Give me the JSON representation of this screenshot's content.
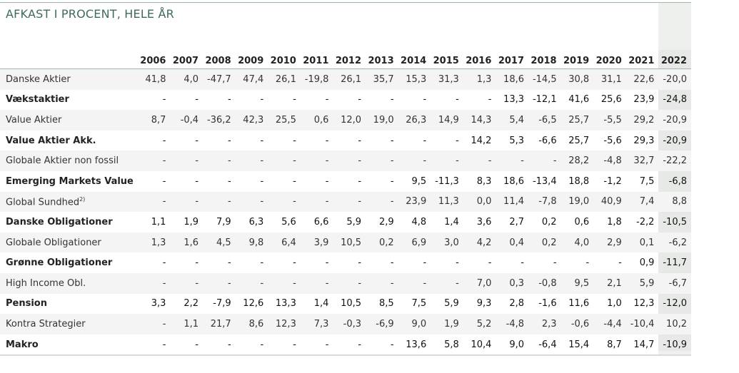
{
  "title": "AFKAST I PROCENT, HELE ÅR",
  "years": [
    "2006",
    "2007",
    "2008",
    "2009",
    "2010",
    "2011",
    "2012",
    "2013",
    "2014",
    "2015",
    "2016",
    "2017",
    "2018",
    "2019",
    "2020",
    "2021",
    "2022"
  ],
  "rows": [
    {
      "label": "Danske Aktier",
      "bold": false,
      "values": [
        "41,8",
        "4,0",
        "-47,7",
        "47,4",
        "26,1",
        "-19,8",
        "26,1",
        "35,7",
        "15,3",
        "31,3",
        "1,3",
        "18,6",
        "-14,5",
        "30,8",
        "31,1",
        "22,6",
        "-20,0"
      ]
    },
    {
      "label": "Vækstaktier",
      "bold": true,
      "values": [
        "-",
        "-",
        "-",
        "-",
        "-",
        "-",
        "-",
        "-",
        "-",
        "-",
        "-",
        "13,3",
        "-12,1",
        "41,6",
        "25,6",
        "23,9",
        "-24,8"
      ]
    },
    {
      "label": "Value Aktier",
      "bold": false,
      "values": [
        "8,7",
        "-0,4",
        "-36,2",
        "42,3",
        "25,5",
        "0,6",
        "12,0",
        "19,0",
        "26,3",
        "14,9",
        "14,3",
        "5,4",
        "-6,5",
        "25,7",
        "-5,5",
        "29,2",
        "-20,9"
      ]
    },
    {
      "label": "Value Aktier Akk.",
      "bold": true,
      "values": [
        "-",
        "-",
        "-",
        "-",
        "-",
        "-",
        "-",
        "-",
        "-",
        "-",
        "14,2",
        "5,3",
        "-6,6",
        "25,7",
        "-5,6",
        "29,3",
        "-20,9"
      ]
    },
    {
      "label": "Globale Aktier non fossil",
      "bold": false,
      "values": [
        "-",
        "-",
        "-",
        "-",
        "-",
        "-",
        "-",
        "-",
        "-",
        "-",
        "-",
        "-",
        "-",
        "28,2",
        "-4,8",
        "32,7",
        "-22,2"
      ]
    },
    {
      "label": "Emerging Markets Value",
      "bold": true,
      "values": [
        "-",
        "-",
        "-",
        "-",
        "-",
        "-",
        "-",
        "-",
        "9,5",
        "-11,3",
        "8,3",
        "18,6",
        "-13,4",
        "18,8",
        "-1,2",
        "7,5",
        "-6,8"
      ]
    },
    {
      "label": "Global Sundhed",
      "sup": "2)",
      "bold": false,
      "values": [
        "-",
        "-",
        "-",
        "-",
        "-",
        "-",
        "-",
        "-",
        "23,9",
        "11,3",
        "0,0",
        "11,4",
        "-7,8",
        "19,0",
        "40,9",
        "7,4",
        "8,8"
      ]
    },
    {
      "label": "Danske Obligationer",
      "bold": true,
      "values": [
        "1,1",
        "1,9",
        "7,9",
        "6,3",
        "5,6",
        "6,6",
        "5,9",
        "2,9",
        "4,8",
        "1,4",
        "3,6",
        "2,7",
        "0,2",
        "0,6",
        "1,8",
        "-2,2",
        "-10,5"
      ]
    },
    {
      "label": "Globale Obligationer",
      "bold": false,
      "values": [
        "1,3",
        "1,6",
        "4,5",
        "9,8",
        "6,4",
        "3,9",
        "10,5",
        "0,2",
        "6,9",
        "3,0",
        "4,2",
        "0,4",
        "0,2",
        "4,0",
        "2,9",
        "0,1",
        "-6,2"
      ]
    },
    {
      "label": "Grønne Obligationer",
      "bold": true,
      "values": [
        "-",
        "-",
        "-",
        "-",
        "-",
        "-",
        "-",
        "-",
        "-",
        "-",
        "-",
        "-",
        "-",
        "-",
        "-",
        "0,9",
        "-11,7"
      ]
    },
    {
      "label": "High Income Obl.",
      "bold": false,
      "values": [
        "-",
        "-",
        "-",
        "-",
        "-",
        "-",
        "-",
        "-",
        "-",
        "-",
        "7,0",
        "0,3",
        "-0,8",
        "9,5",
        "2,1",
        "5,9",
        "-6,7"
      ]
    },
    {
      "label": "Pension",
      "bold": true,
      "values": [
        "3,3",
        "2,2",
        "-7,9",
        "12,6",
        "13,3",
        "1,4",
        "10,5",
        "8,5",
        "7,5",
        "5,9",
        "9,3",
        "2,8",
        "-1,6",
        "11,6",
        "1,0",
        "12,3",
        "-12,0"
      ]
    },
    {
      "label": "Kontra Strategier",
      "bold": false,
      "values": [
        "-",
        "1,1",
        "21,7",
        "8,6",
        "12,3",
        "7,3",
        "-0,3",
        "-6,9",
        "9,0",
        "1,9",
        "5,2",
        "-4,8",
        "2,3",
        "-0,6",
        "-4,4",
        "-10,4",
        "10,2"
      ]
    },
    {
      "label": "Makro",
      "bold": true,
      "values": [
        "-",
        "-",
        "-",
        "-",
        "-",
        "-",
        "-",
        "-",
        "13,6",
        "5,8",
        "10,4",
        "9,0",
        "-6,4",
        "15,4",
        "8,7",
        "14,7",
        "-10,9"
      ]
    }
  ]
}
